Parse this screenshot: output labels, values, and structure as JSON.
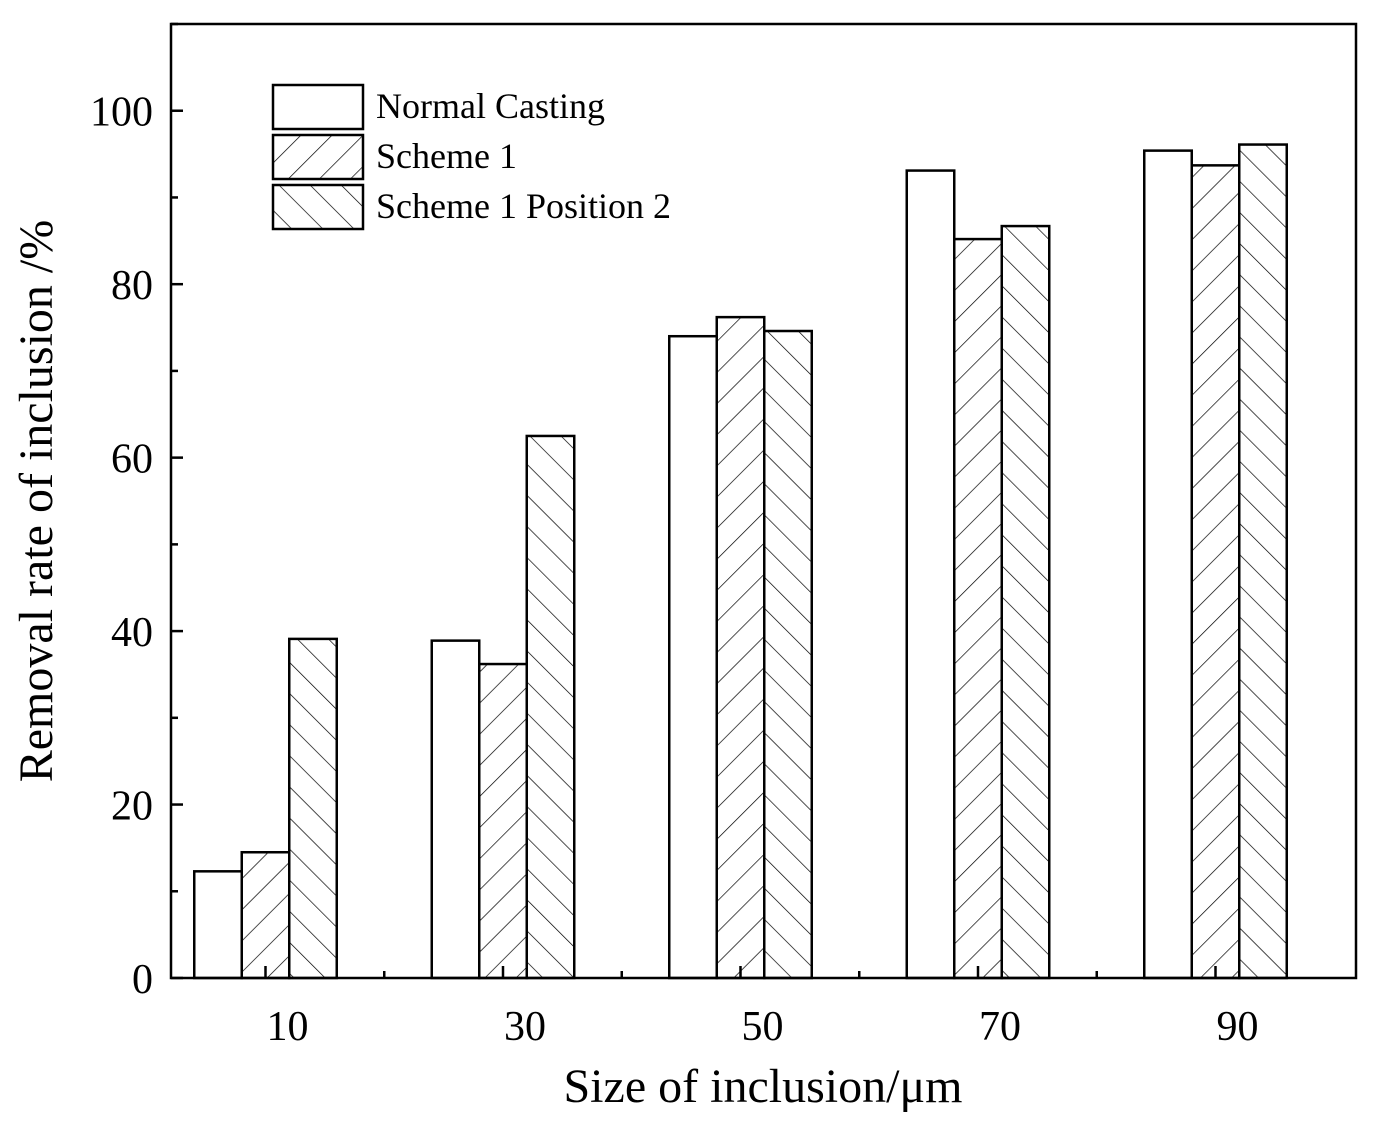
{
  "chart_data": {
    "type": "bar",
    "title": "",
    "xlabel": "Size of inclusion/μm",
    "ylabel": "Removal rate of inclusion /%",
    "categories": [
      "10",
      "30",
      "50",
      "70",
      "90"
    ],
    "ylim": [
      0,
      110
    ],
    "yticks": [
      0,
      20,
      40,
      60,
      80,
      100
    ],
    "yticks_minor": [
      10,
      30,
      50,
      70,
      90,
      110
    ],
    "legend_position": "top-left",
    "grid": false,
    "series": [
      {
        "name": "Normal Casting",
        "pattern": "none",
        "values": [
          12.3,
          38.9,
          74.0,
          93.1,
          95.4
        ]
      },
      {
        "name": "Scheme 1",
        "pattern": "forward-hatch",
        "values": [
          14.5,
          36.2,
          76.2,
          85.2,
          93.7
        ]
      },
      {
        "name": "Scheme 1 Position 2",
        "pattern": "back-hatch",
        "values": [
          39.1,
          62.5,
          74.6,
          86.7,
          96.1
        ]
      }
    ]
  }
}
